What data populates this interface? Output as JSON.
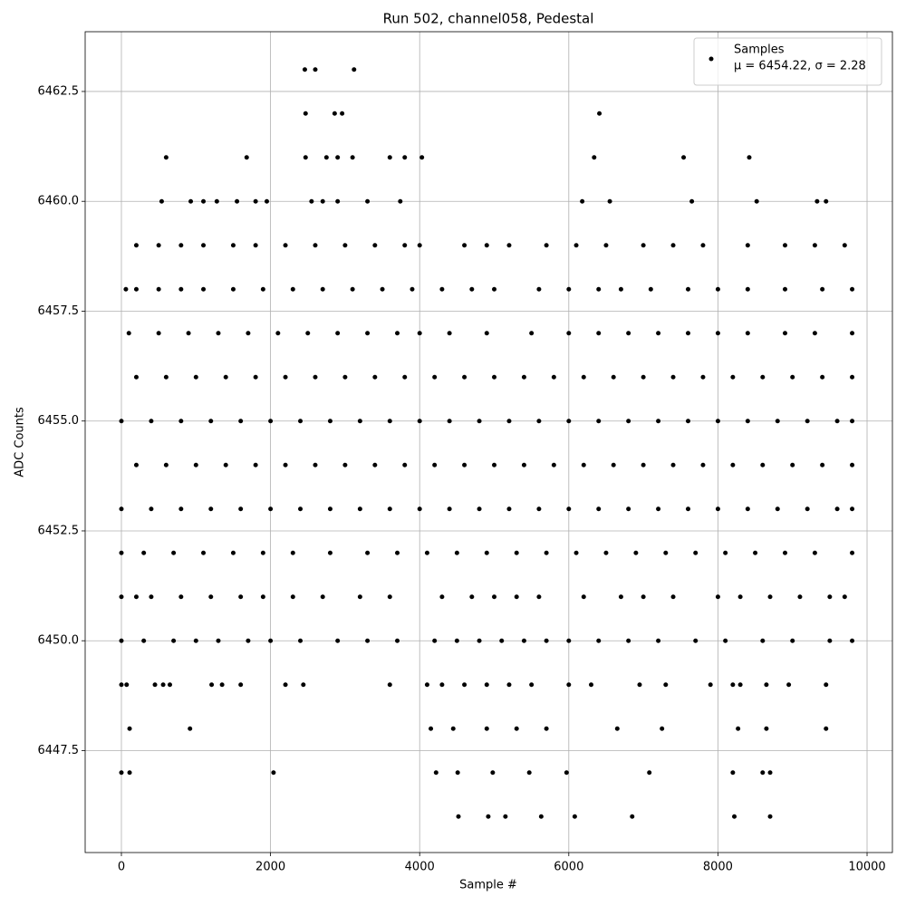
{
  "chart_data": {
    "type": "scatter",
    "title": "Run 502, channel058, Pedestal",
    "x_label": "Sample #",
    "y_label": "ADC Counts",
    "xlim": [
      -486,
      10340
    ],
    "ylim": [
      6445.18,
      6463.86
    ],
    "xticks": [
      0,
      2000,
      4000,
      6000,
      8000,
      10000
    ],
    "yticks": [
      6447.5,
      {
        "value": 6450,
        "label": "6450.0"
      },
      6452.5,
      {
        "value": 6455,
        "label": "6455.0"
      },
      6457.5,
      {
        "value": 6460,
        "label": "6460.0"
      },
      6462.5
    ],
    "grid": true,
    "legend_position": "upper right",
    "legend_stats": "μ = 6454.22, σ = 2.28",
    "series": [
      {
        "name": "Samples",
        "color": "#000000",
        "x": [
          0,
          400,
          800,
          1200,
          1600,
          2000,
          2400,
          2800,
          3200,
          3600,
          4000,
          4400,
          4800,
          5200,
          5600,
          6000,
          6400,
          6800,
          7200,
          7600,
          8000,
          8400,
          8800,
          9200,
          9600,
          9800,
          200,
          600,
          1000,
          1400,
          1800,
          2200,
          2600,
          3000,
          3400,
          3800,
          4200,
          4600,
          5000,
          5400,
          5800,
          6200,
          6600,
          7000,
          7400,
          7800,
          8200,
          8600,
          9000,
          9400,
          9800,
          0,
          400,
          800,
          1200,
          1600,
          2000,
          2400,
          2800,
          3200,
          3600,
          4000,
          4400,
          4800,
          5200,
          5600,
          6000,
          6400,
          6800,
          7200,
          7600,
          8000,
          8400,
          8800,
          9200,
          9600,
          9800,
          200,
          600,
          1000,
          1400,
          1800,
          2200,
          2600,
          3000,
          3400,
          3800,
          4200,
          4600,
          5000,
          5400,
          5800,
          6200,
          6600,
          7000,
          7400,
          7800,
          8200,
          8600,
          9000,
          9400,
          9800,
          0,
          300,
          700,
          1100,
          1500,
          1900,
          2300,
          2800,
          3300,
          3700,
          4100,
          4500,
          4900,
          5300,
          5700,
          6100,
          6500,
          6900,
          7300,
          7700,
          8100,
          8500,
          8900,
          9300,
          9800,
          100,
          500,
          900,
          1300,
          1700,
          2100,
          2500,
          2900,
          3300,
          3700,
          4000,
          4400,
          4900,
          5500,
          6000,
          6400,
          6800,
          7200,
          7600,
          8000,
          8400,
          8900,
          9300,
          9800,
          0,
          300,
          700,
          1000,
          1300,
          1700,
          2000,
          2400,
          2900,
          3300,
          3700,
          4200,
          4500,
          4800,
          5100,
          5400,
          5700,
          6000,
          6400,
          6800,
          7200,
          7700,
          8100,
          8600,
          9000,
          9500,
          9800,
          0,
          200,
          400,
          800,
          1200,
          1600,
          1900,
          2300,
          2700,
          3200,
          3600,
          4300,
          4700,
          5000,
          5300,
          5600,
          6200,
          6700,
          7000,
          7400,
          8000,
          8300,
          8700,
          9100,
          9500,
          9700,
          60,
          200,
          500,
          800,
          1100,
          1500,
          1900,
          2300,
          2700,
          3100,
          3500,
          3900,
          4300,
          4700,
          5000,
          5600,
          6000,
          6400,
          6700,
          7100,
          7600,
          8000,
          8400,
          8900,
          9400,
          9800,
          200,
          500,
          800,
          1100,
          1500,
          1800,
          2200,
          2600,
          3000,
          3400,
          3800,
          4000,
          4600,
          4900,
          5200,
          5700,
          6100,
          6500,
          7000,
          7400,
          7800,
          8400,
          8900,
          9300,
          9700,
          540,
          930,
          1100,
          1280,
          1550,
          1800,
          1950,
          2550,
          2700,
          2900,
          3300,
          3740,
          6180,
          6550,
          7650,
          8520,
          9330,
          9450,
          600,
          1680,
          2470,
          2750,
          2900,
          3100,
          3600,
          3800,
          4030,
          6340,
          7540,
          8420,
          2470,
          2860,
          2960,
          6410,
          2460,
          2600,
          3120,
          0,
          70,
          450,
          560,
          650,
          1210,
          1350,
          1600,
          2200,
          2440,
          3600,
          4100,
          4300,
          4600,
          4900,
          5200,
          5500,
          6000,
          6300,
          6950,
          7300,
          7900,
          8200,
          8300,
          8650,
          8950,
          9450,
          110,
          920,
          4150,
          4450,
          4900,
          5300,
          5700,
          6650,
          7250,
          8270,
          8650,
          9450,
          0,
          110,
          2040,
          4220,
          4510,
          4980,
          5470,
          5970,
          7080,
          8200,
          8600,
          8700,
          4520,
          4920,
          5150,
          5630,
          6080,
          6850,
          8220,
          8700
        ],
        "values": [
          6453,
          6453,
          6453,
          6453,
          6453,
          6453,
          6453,
          6453,
          6453,
          6453,
          6453,
          6453,
          6453,
          6453,
          6453,
          6453,
          6453,
          6453,
          6453,
          6453,
          6453,
          6453,
          6453,
          6453,
          6453,
          6453,
          6454,
          6454,
          6454,
          6454,
          6454,
          6454,
          6454,
          6454,
          6454,
          6454,
          6454,
          6454,
          6454,
          6454,
          6454,
          6454,
          6454,
          6454,
          6454,
          6454,
          6454,
          6454,
          6454,
          6454,
          6454,
          6455,
          6455,
          6455,
          6455,
          6455,
          6455,
          6455,
          6455,
          6455,
          6455,
          6455,
          6455,
          6455,
          6455,
          6455,
          6455,
          6455,
          6455,
          6455,
          6455,
          6455,
          6455,
          6455,
          6455,
          6455,
          6455,
          6456,
          6456,
          6456,
          6456,
          6456,
          6456,
          6456,
          6456,
          6456,
          6456,
          6456,
          6456,
          6456,
          6456,
          6456,
          6456,
          6456,
          6456,
          6456,
          6456,
          6456,
          6456,
          6456,
          6456,
          6456,
          6452,
          6452,
          6452,
          6452,
          6452,
          6452,
          6452,
          6452,
          6452,
          6452,
          6452,
          6452,
          6452,
          6452,
          6452,
          6452,
          6452,
          6452,
          6452,
          6452,
          6452,
          6452,
          6452,
          6452,
          6452,
          6457,
          6457,
          6457,
          6457,
          6457,
          6457,
          6457,
          6457,
          6457,
          6457,
          6457,
          6457,
          6457,
          6457,
          6457,
          6457,
          6457,
          6457,
          6457,
          6457,
          6457,
          6457,
          6457,
          6457,
          6450,
          6450,
          6450,
          6450,
          6450,
          6450,
          6450,
          6450,
          6450,
          6450,
          6450,
          6450,
          6450,
          6450,
          6450,
          6450,
          6450,
          6450,
          6450,
          6450,
          6450,
          6450,
          6450,
          6450,
          6450,
          6450,
          6450,
          6451,
          6451,
          6451,
          6451,
          6451,
          6451,
          6451,
          6451,
          6451,
          6451,
          6451,
          6451,
          6451,
          6451,
          6451,
          6451,
          6451,
          6451,
          6451,
          6451,
          6451,
          6451,
          6451,
          6451,
          6451,
          6451,
          6458,
          6458,
          6458,
          6458,
          6458,
          6458,
          6458,
          6458,
          6458,
          6458,
          6458,
          6458,
          6458,
          6458,
          6458,
          6458,
          6458,
          6458,
          6458,
          6458,
          6458,
          6458,
          6458,
          6458,
          6458,
          6458,
          6459,
          6459,
          6459,
          6459,
          6459,
          6459,
          6459,
          6459,
          6459,
          6459,
          6459,
          6459,
          6459,
          6459,
          6459,
          6459,
          6459,
          6459,
          6459,
          6459,
          6459,
          6459,
          6459,
          6459,
          6459,
          6460,
          6460,
          6460,
          6460,
          6460,
          6460,
          6460,
          6460,
          6460,
          6460,
          6460,
          6460,
          6460,
          6460,
          6460,
          6460,
          6460,
          6460,
          6461,
          6461,
          6461,
          6461,
          6461,
          6461,
          6461,
          6461,
          6461,
          6461,
          6461,
          6461,
          6462,
          6462,
          6462,
          6462,
          6463,
          6463,
          6463,
          6449,
          6449,
          6449,
          6449,
          6449,
          6449,
          6449,
          6449,
          6449,
          6449,
          6449,
          6449,
          6449,
          6449,
          6449,
          6449,
          6449,
          6449,
          6449,
          6449,
          6449,
          6449,
          6449,
          6449,
          6449,
          6449,
          6449,
          6448,
          6448,
          6448,
          6448,
          6448,
          6448,
          6448,
          6448,
          6448,
          6448,
          6448,
          6448,
          6447,
          6447,
          6447,
          6447,
          6447,
          6447,
          6447,
          6447,
          6447,
          6447,
          6447,
          6447,
          6446,
          6446,
          6446,
          6446,
          6446,
          6446,
          6446,
          6446
        ]
      }
    ]
  }
}
